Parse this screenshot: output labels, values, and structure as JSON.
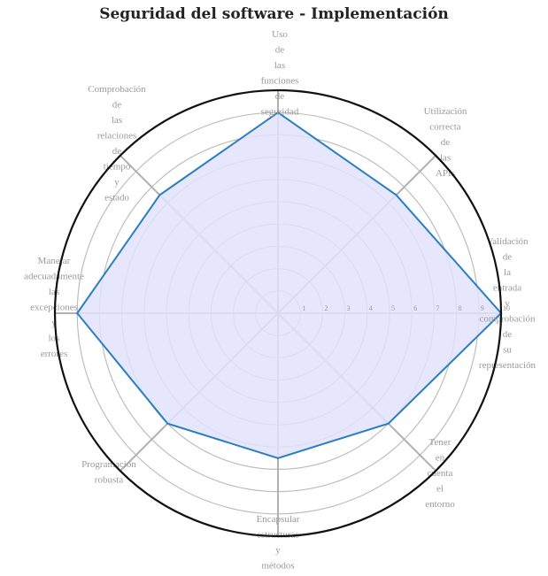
{
  "chart_data": {
    "type": "radar",
    "title": "Seguridad del software - Implementación",
    "axes": [
      [
        "Uso",
        "de",
        "las",
        "funciones",
        "de",
        "seguridad"
      ],
      [
        "Utilización",
        "correcta",
        "de",
        "las",
        "APIs"
      ],
      [
        "Validación",
        "de",
        "la",
        "entrada",
        "y",
        "comprobación",
        "de",
        "su",
        "representación"
      ],
      [
        "Tener",
        "en",
        "cuenta",
        "el",
        "entorno"
      ],
      [
        "Encapsular",
        "estructuras",
        "y",
        "métodos"
      ],
      [
        "Programación",
        "robusta"
      ],
      [
        "Manejar",
        "adecuadamente",
        "las",
        "excepciones",
        "y",
        "los",
        "errores"
      ],
      [
        "Comprobación",
        "de",
        "las",
        "relaciones",
        "de",
        "tiempo",
        "y",
        "estado"
      ]
    ],
    "tick_labels": [
      "1",
      "2",
      "3",
      "4",
      "5",
      "6",
      "7",
      "8",
      "9",
      "10"
    ],
    "rmax": 10,
    "series": [
      {
        "values": [
          9,
          7.5,
          10,
          7,
          6.5,
          7,
          9,
          7.5
        ]
      }
    ],
    "colors": {
      "line": "#2a7fc0",
      "fill": "#e2e2fb",
      "grid": "#bdbdbd",
      "spoke": "#b0b0b0",
      "outer": "#111111"
    }
  }
}
